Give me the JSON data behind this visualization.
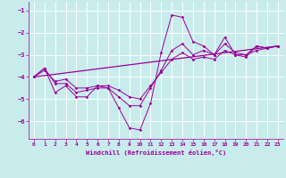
{
  "title": "",
  "xlabel": "Windchill (Refroidissement éolien,°C)",
  "background_color": "#c8ecec",
  "grid_color": "#ffffff",
  "line_color": "#990099",
  "xlim": [
    -0.5,
    23.5
  ],
  "ylim": [
    -6.8,
    -0.6
  ],
  "yticks": [
    -6,
    -5,
    -4,
    -3,
    -2,
    -1
  ],
  "xticks": [
    0,
    1,
    2,
    3,
    4,
    5,
    6,
    7,
    8,
    9,
    10,
    11,
    12,
    13,
    14,
    15,
    16,
    17,
    18,
    19,
    20,
    21,
    22,
    23
  ],
  "series": [
    {
      "x": [
        0,
        1,
        2,
        3,
        4,
        5,
        6,
        7,
        8,
        9,
        10,
        11,
        12,
        13,
        14,
        15,
        16,
        17,
        18,
        19,
        20,
        21,
        22,
        23
      ],
      "y": [
        -4.0,
        -3.6,
        -4.7,
        -4.4,
        -4.9,
        -4.9,
        -4.4,
        -4.5,
        -5.4,
        -6.3,
        -6.4,
        -5.2,
        -2.9,
        -1.2,
        -1.3,
        -2.4,
        -2.6,
        -3.0,
        -2.2,
        -3.0,
        -3.1,
        -2.6,
        -2.7,
        -2.6
      ]
    },
    {
      "x": [
        0,
        1,
        2,
        3,
        4,
        5,
        6,
        7,
        8,
        9,
        10,
        11,
        12,
        13,
        14,
        15,
        16,
        17,
        18,
        19,
        20,
        21,
        22,
        23
      ],
      "y": [
        -4.0,
        -3.6,
        -4.3,
        -4.3,
        -4.7,
        -4.6,
        -4.5,
        -4.5,
        -4.9,
        -5.3,
        -5.3,
        -4.5,
        -3.7,
        -2.8,
        -2.5,
        -3.0,
        -2.8,
        -3.0,
        -2.5,
        -2.9,
        -3.0,
        -2.6,
        -2.7,
        -2.6
      ]
    },
    {
      "x": [
        0,
        1,
        2,
        3,
        4,
        5,
        6,
        7,
        8,
        9,
        10,
        11,
        12,
        13,
        14,
        15,
        16,
        17,
        18,
        19,
        20,
        21,
        22,
        23
      ],
      "y": [
        -4.0,
        -3.7,
        -4.2,
        -4.1,
        -4.5,
        -4.5,
        -4.4,
        -4.4,
        -4.6,
        -4.9,
        -5.0,
        -4.4,
        -3.8,
        -3.2,
        -2.9,
        -3.2,
        -3.1,
        -3.2,
        -2.8,
        -3.0,
        -3.0,
        -2.8,
        -2.7,
        -2.6
      ]
    },
    {
      "x": [
        0,
        23
      ],
      "y": [
        -4.0,
        -2.6
      ]
    }
  ]
}
